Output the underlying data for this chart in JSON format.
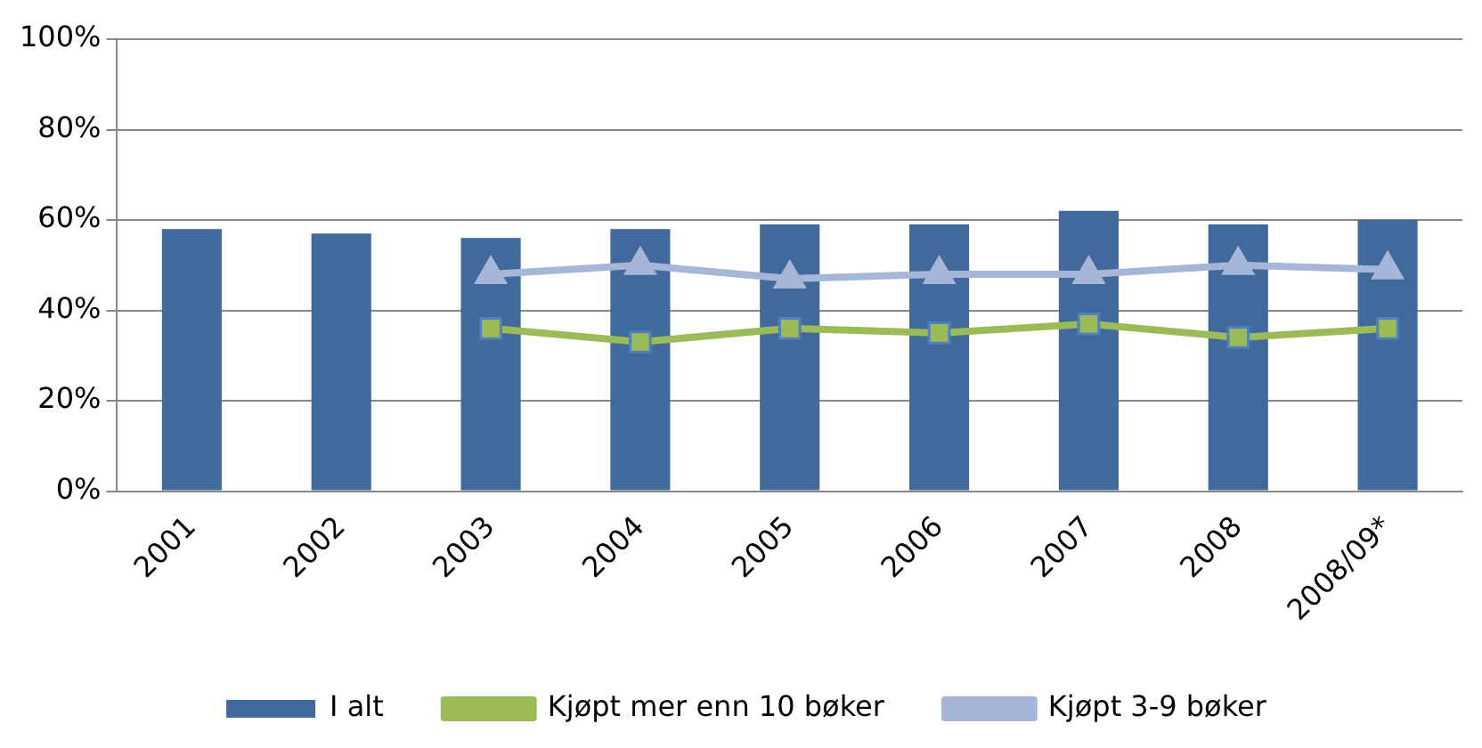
{
  "chart_data": {
    "type": "bar",
    "categories": [
      "2001",
      "2002",
      "2003",
      "2004",
      "2005",
      "2006",
      "2007",
      "2008",
      "2008/09*"
    ],
    "series": [
      {
        "name": "I alt",
        "color": "#41699b",
        "values": [
          58,
          57,
          56,
          58,
          59,
          59,
          62,
          59,
          60
        ]
      },
      {
        "name": "Kjøpt mer enn 10 bøker",
        "type": "line",
        "marker": "square",
        "color": "#9bbb59",
        "values": [
          null,
          null,
          36,
          33,
          36,
          35,
          37,
          34,
          36
        ]
      },
      {
        "name": "Kjøpt 3-9 bøker",
        "type": "line",
        "marker": "triangle",
        "color": "#a5b6d8",
        "values": [
          null,
          null,
          48,
          50,
          47,
          48,
          48,
          50,
          49
        ]
      }
    ],
    "ylim": [
      0,
      100
    ],
    "yticks": [
      {
        "value": 0,
        "label": "0%"
      },
      {
        "value": 20,
        "label": "20%"
      },
      {
        "value": 40,
        "label": "40%"
      },
      {
        "value": 60,
        "label": "60%"
      },
      {
        "value": 80,
        "label": "80%"
      },
      {
        "value": 100,
        "label": "100%"
      }
    ],
    "grid": "y",
    "legend": "bottom"
  }
}
